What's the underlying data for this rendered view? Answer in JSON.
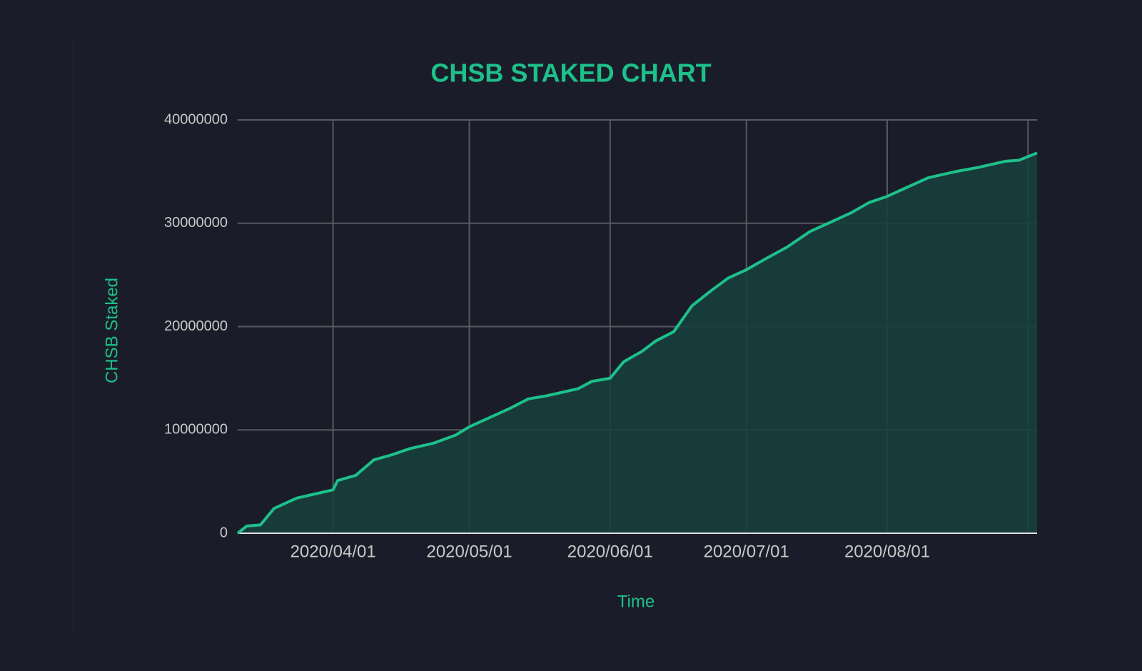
{
  "chart_data": {
    "type": "area",
    "title": "CHSB STAKED CHART",
    "x_label": "Time",
    "y_label": "CHSB Staked",
    "x": [
      "2020-03-11",
      "2020-03-13",
      "2020-03-16",
      "2020-03-19",
      "2020-03-22",
      "2020-03-24",
      "2020-03-28",
      "2020-04-01",
      "2020-04-02",
      "2020-04-06",
      "2020-04-10",
      "2020-04-14",
      "2020-04-18",
      "2020-04-23",
      "2020-04-28",
      "2020-05-01",
      "2020-05-06",
      "2020-05-10",
      "2020-05-14",
      "2020-05-18",
      "2020-05-25",
      "2020-05-28",
      "2020-06-01",
      "2020-06-04",
      "2020-06-08",
      "2020-06-11",
      "2020-06-15",
      "2020-06-19",
      "2020-06-23",
      "2020-06-27",
      "2020-07-01",
      "2020-07-05",
      "2020-07-10",
      "2020-07-15",
      "2020-07-19",
      "2020-07-24",
      "2020-07-28",
      "2020-08-01",
      "2020-08-05",
      "2020-08-10",
      "2020-08-16",
      "2020-08-21",
      "2020-08-27",
      "2020-08-30",
      "2020-09-03"
    ],
    "values": [
      0,
      700000,
      800000,
      2400000,
      3000000,
      3400000,
      3800000,
      4200000,
      5100000,
      5600000,
      7100000,
      7600000,
      8200000,
      8700000,
      9500000,
      10300000,
      11300000,
      12100000,
      13000000,
      13300000,
      14000000,
      14700000,
      15000000,
      16600000,
      17600000,
      18600000,
      19500000,
      22000000,
      23400000,
      24700000,
      25500000,
      26500000,
      27700000,
      29200000,
      30000000,
      31000000,
      32000000,
      32600000,
      33400000,
      34400000,
      35000000,
      35400000,
      36000000,
      36100000,
      36800000
    ],
    "color": "#1ec08a",
    "area_color": "#173f3d",
    "xlim": [
      "2020-03-11",
      "2020-09-03"
    ],
    "xticks": [
      {
        "value": "2020-04-01",
        "label": "2020/04/01"
      },
      {
        "value": "2020-05-01",
        "label": "2020/05/01"
      },
      {
        "value": "2020-06-01",
        "label": "2020/06/01"
      },
      {
        "value": "2020-07-01",
        "label": "2020/07/01"
      },
      {
        "value": "2020-08-01",
        "label": "2020/08/01"
      },
      {
        "value": "2020-09-01",
        "label": null
      }
    ],
    "ylim": [
      0,
      40000000
    ],
    "yticks": [
      0,
      10000000,
      20000000,
      30000000,
      40000000
    ],
    "grid": true
  }
}
